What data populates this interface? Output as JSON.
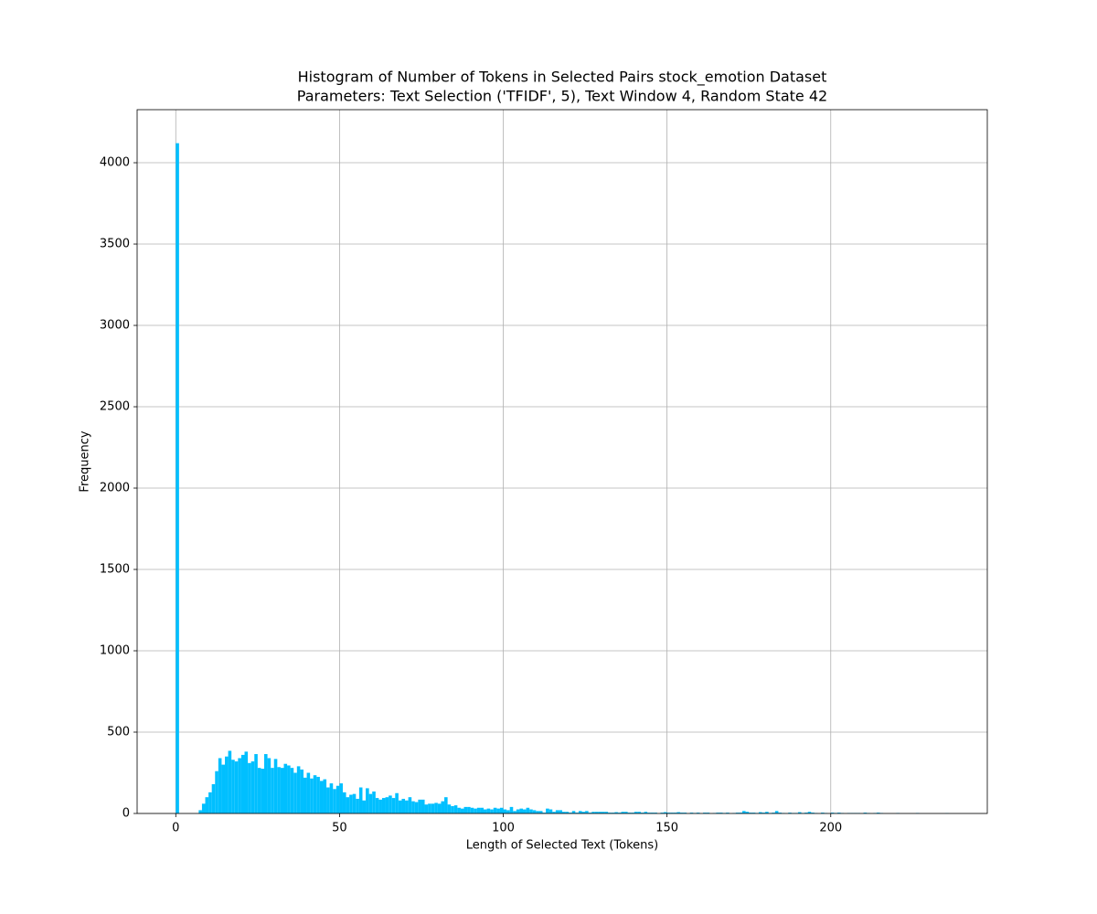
{
  "chart_data": {
    "type": "histogram",
    "title": "Histogram of Number of Tokens in Selected Pairs stock_emotion Dataset",
    "subtitle": "Parameters: Text Selection ('TFIDF', 5), Text Window 4, Random State 42",
    "xlabel": "Length of Selected Text (Tokens)",
    "ylabel": "Frequency",
    "color": "#00bfff",
    "grid": true,
    "xlim": [
      -11.8,
      247.8
    ],
    "ylim": [
      0,
      4326
    ],
    "xticks": [
      0,
      50,
      100,
      150,
      200
    ],
    "yticks": [
      0,
      500,
      1000,
      1500,
      2000,
      2500,
      3000,
      3500,
      4000
    ],
    "bins": [
      0,
      1,
      2,
      3,
      4,
      5,
      6,
      7,
      8,
      9,
      10,
      11,
      12,
      13,
      14,
      15,
      16,
      17,
      18,
      19,
      20,
      21,
      22,
      23,
      24,
      25,
      26,
      27,
      28,
      29,
      30,
      31,
      32,
      33,
      34,
      35,
      36,
      37,
      38,
      39,
      40,
      41,
      42,
      43,
      44,
      45,
      46,
      47,
      48,
      49,
      50,
      51,
      52,
      53,
      54,
      55,
      56,
      57,
      58,
      59,
      60,
      61,
      62,
      63,
      64,
      65,
      66,
      67,
      68,
      69,
      70,
      71,
      72,
      73,
      74,
      75,
      76,
      77,
      78,
      79,
      80,
      81,
      82,
      83,
      84,
      85,
      86,
      87,
      88,
      89,
      90,
      91,
      92,
      93,
      94,
      95,
      96,
      97,
      98,
      99,
      100,
      101,
      102,
      103,
      104,
      105,
      106,
      107,
      108,
      109,
      110,
      111,
      112,
      113,
      114,
      115,
      116,
      117,
      118,
      119,
      120,
      121,
      122,
      123,
      124,
      125,
      126,
      127,
      128,
      129,
      130,
      131,
      132,
      133,
      134,
      135,
      136,
      137,
      138,
      139,
      140,
      141,
      142,
      143,
      144,
      145,
      146,
      147,
      148,
      149,
      150,
      151,
      152,
      153,
      154,
      155,
      156,
      157,
      158,
      159,
      160,
      161,
      162,
      163,
      164,
      165,
      166,
      167,
      168,
      169,
      170,
      171,
      172,
      173,
      174,
      175,
      176,
      177,
      178,
      179,
      180,
      181,
      182,
      183,
      184,
      185,
      186,
      187,
      188,
      189,
      190,
      191,
      192,
      193,
      194,
      195,
      196,
      197,
      198,
      199,
      200,
      201,
      202,
      203,
      204,
      205,
      206,
      207,
      208,
      209,
      210,
      211,
      212,
      213,
      214,
      215,
      216,
      217,
      218,
      219,
      220,
      221,
      222,
      223,
      224,
      225,
      226,
      227,
      228,
      229,
      230,
      231,
      232,
      233,
      234,
      235,
      236
    ],
    "counts": [
      4120,
      0,
      0,
      0,
      0,
      0,
      0,
      20,
      60,
      100,
      130,
      180,
      260,
      340,
      300,
      350,
      385,
      330,
      320,
      340,
      360,
      380,
      310,
      320,
      365,
      280,
      275,
      365,
      340,
      280,
      335,
      285,
      280,
      305,
      295,
      280,
      250,
      290,
      270,
      220,
      250,
      215,
      235,
      225,
      200,
      210,
      160,
      185,
      150,
      170,
      185,
      130,
      100,
      115,
      120,
      90,
      160,
      80,
      155,
      120,
      135,
      95,
      85,
      95,
      100,
      110,
      95,
      125,
      80,
      90,
      80,
      100,
      75,
      70,
      85,
      85,
      55,
      60,
      60,
      65,
      60,
      75,
      100,
      55,
      45,
      50,
      35,
      30,
      40,
      40,
      35,
      30,
      35,
      35,
      25,
      30,
      25,
      35,
      30,
      35,
      25,
      20,
      40,
      15,
      25,
      30,
      25,
      35,
      25,
      20,
      15,
      15,
      5,
      30,
      25,
      10,
      20,
      20,
      10,
      10,
      5,
      15,
      5,
      15,
      10,
      15,
      5,
      10,
      10,
      10,
      10,
      10,
      5,
      5,
      8,
      5,
      10,
      10,
      5,
      5,
      10,
      10,
      5,
      10,
      5,
      5,
      5,
      0,
      5,
      8,
      5,
      5,
      5,
      8,
      5,
      5,
      0,
      5,
      3,
      5,
      0,
      5,
      5,
      0,
      3,
      5,
      5,
      3,
      5,
      0,
      3,
      5,
      5,
      15,
      10,
      5,
      5,
      3,
      8,
      5,
      10,
      3,
      5,
      15,
      5,
      3,
      0,
      5,
      3,
      3,
      8,
      3,
      5,
      10,
      5,
      3,
      0,
      5,
      3,
      0,
      5,
      3,
      5,
      3,
      0,
      3,
      3,
      3,
      3,
      0,
      5,
      3,
      0,
      3,
      5,
      3,
      0,
      0,
      0,
      0,
      3,
      0,
      0,
      0,
      0,
      0,
      3,
      0,
      0,
      0,
      0,
      0,
      0,
      0,
      0,
      2
    ]
  }
}
